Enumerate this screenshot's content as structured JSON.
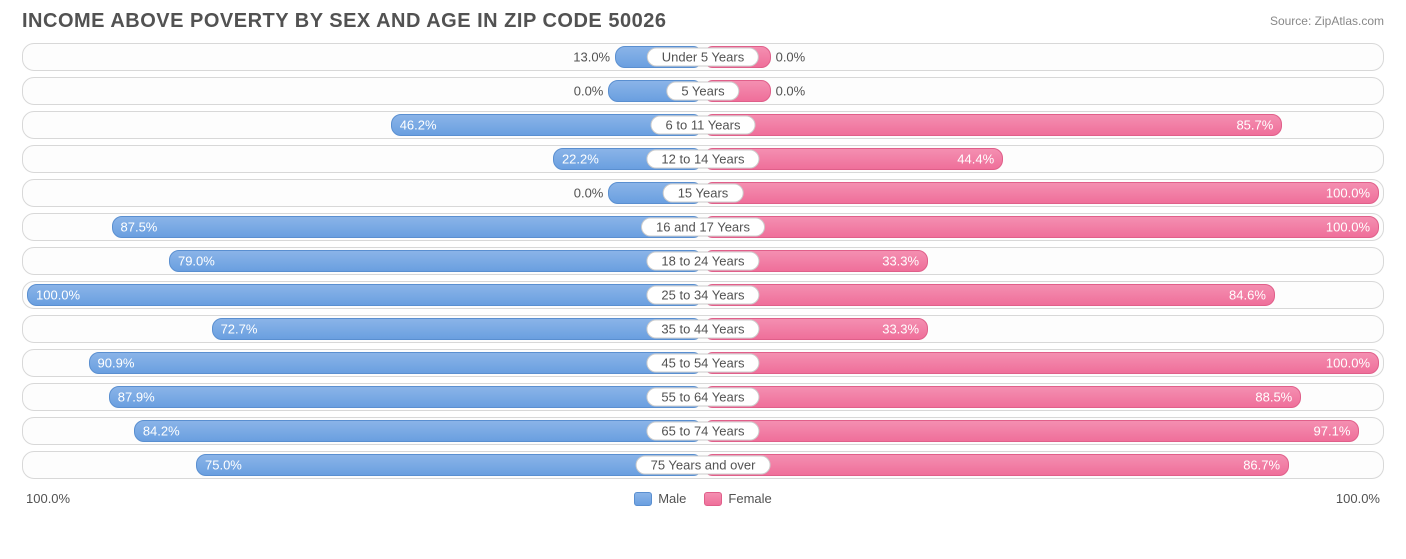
{
  "title": "INCOME ABOVE POVERTY BY SEX AND AGE IN ZIP CODE 50026",
  "source": "Source: ZipAtlas.com",
  "chart": {
    "type": "diverging-bar",
    "track_border_color": "#d8d8d8",
    "track_bg_color": "#fdfdfd",
    "category_label_border": "#cccccc",
    "male_fill_top": "#8ab4e8",
    "male_fill_bottom": "#6a9fe0",
    "male_border": "#5a8fd0",
    "female_fill_top": "#f48fb1",
    "female_fill_bottom": "#ef6f9a",
    "female_border": "#e05f8a",
    "label_threshold_pct": 20,
    "rows": [
      {
        "label": "Under 5 Years",
        "male": 13.0,
        "female": 0.0,
        "female_bar": 10.0
      },
      {
        "label": "5 Years",
        "male": 0.0,
        "female": 0.0,
        "male_bar": 14.0,
        "female_bar": 10.0
      },
      {
        "label": "6 to 11 Years",
        "male": 46.2,
        "female": 85.7
      },
      {
        "label": "12 to 14 Years",
        "male": 22.2,
        "female": 44.4
      },
      {
        "label": "15 Years",
        "male": 0.0,
        "female": 100.0,
        "male_bar": 14.0
      },
      {
        "label": "16 and 17 Years",
        "male": 87.5,
        "female": 100.0
      },
      {
        "label": "18 to 24 Years",
        "male": 79.0,
        "female": 33.3
      },
      {
        "label": "25 to 34 Years",
        "male": 100.0,
        "female": 84.6
      },
      {
        "label": "35 to 44 Years",
        "male": 72.7,
        "female": 33.3
      },
      {
        "label": "45 to 54 Years",
        "male": 90.9,
        "female": 100.0
      },
      {
        "label": "55 to 64 Years",
        "male": 87.9,
        "female": 88.5
      },
      {
        "label": "65 to 74 Years",
        "male": 84.2,
        "female": 97.1
      },
      {
        "label": "75 Years and over",
        "male": 75.0,
        "female": 86.7
      }
    ]
  },
  "axis": {
    "left_label": "100.0%",
    "right_label": "100.0%"
  },
  "legend": {
    "male": "Male",
    "female": "Female"
  }
}
